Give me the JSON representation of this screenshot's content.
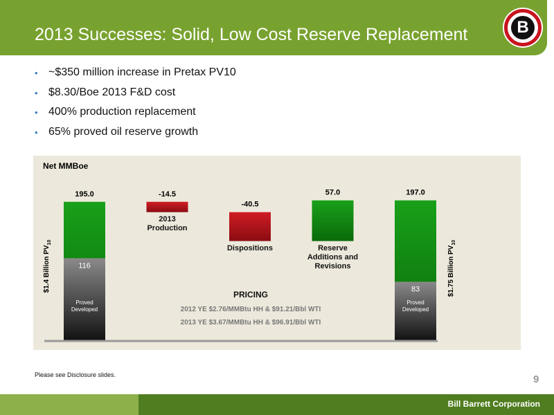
{
  "header": {
    "title": "2013 Successes: Solid, Low Cost Reserve Replacement",
    "logo": "B"
  },
  "bullets": [
    "~$350 million increase in Pretax PV10",
    "$8.30/Boe 2013 F&D cost",
    "400% production replacement",
    "65% proved oil reserve growth"
  ],
  "chart_data": {
    "type": "waterfall",
    "title": "Net MMBoe",
    "categories": [
      null,
      "2013 Production",
      "Dispositions",
      "Reserve Additions and Revisions",
      null
    ],
    "values": [
      195,
      -14.5,
      -40.5,
      57,
      197
    ],
    "value_labels": [
      "195.0",
      "-14.5",
      "-40.5",
      "57.0",
      "197.0"
    ],
    "totals": [
      true,
      false,
      false,
      false,
      true
    ],
    "proved_developed": [
      116,
      null,
      null,
      null,
      83
    ],
    "proved_developed_label": "Proved Developed",
    "pv_labels": [
      {
        "text": "$1.4 Billion PV",
        "sub": "10"
      },
      {
        "text": "$1.75 Billion PV",
        "sub": "10"
      }
    ],
    "pricing": {
      "title": "PRICING",
      "lines": [
        "2012 YE $2.76/MMBtu HH & $91.21/Bbl WTI",
        "2013 YE $3.67/MMBtu HH & $96.91/Bbl WTI"
      ]
    },
    "colors": {
      "increase": [
        "#19a019",
        "#0a6a0a"
      ],
      "decrease": [
        "#d01c24",
        "#8a0c12"
      ],
      "proved_developed": [
        "#8a8a8a",
        "#111111"
      ]
    }
  },
  "footer": {
    "note": "Please see Disclosure slides.",
    "page": "9",
    "company": "Bill Barrett Corporation"
  }
}
